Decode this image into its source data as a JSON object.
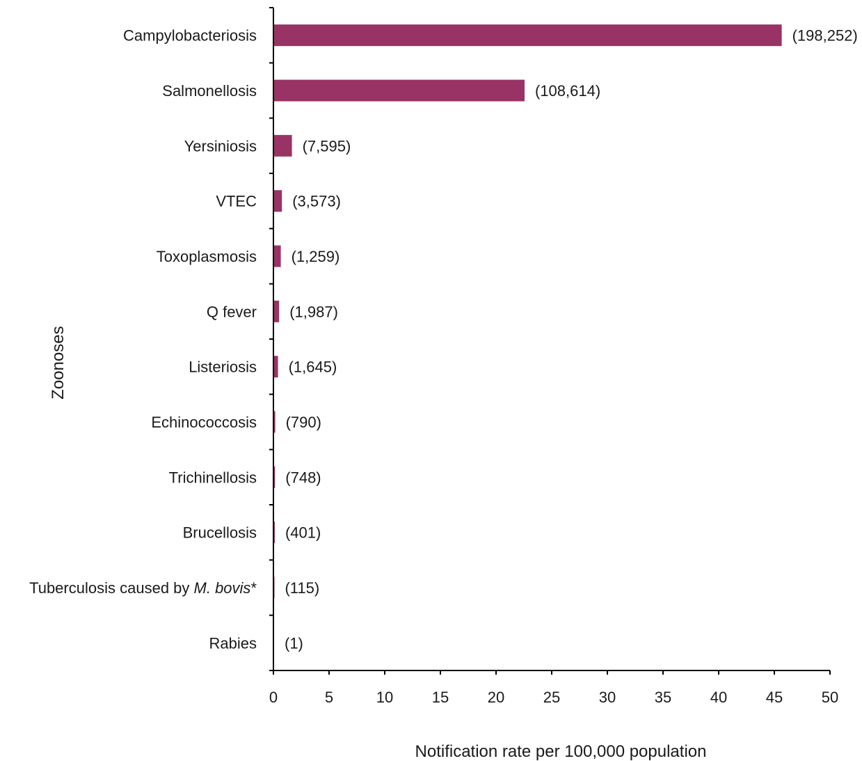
{
  "chart_data": {
    "type": "bar",
    "orientation": "horizontal",
    "title": "",
    "xlabel": "Notification rate per 100,000 population",
    "ylabel": "Zoonoses",
    "xlim": [
      0,
      50
    ],
    "x_ticks": [
      "0",
      "5",
      "10",
      "15",
      "20",
      "25",
      "30",
      "35",
      "40",
      "45",
      "50"
    ],
    "grid": false,
    "bar_color": "#993366",
    "categories": [
      {
        "label": "Campylobacteriosis",
        "italic_part": "",
        "suffix": ""
      },
      {
        "label": "Salmonellosis",
        "italic_part": "",
        "suffix": ""
      },
      {
        "label": "Yersiniosis",
        "italic_part": "",
        "suffix": ""
      },
      {
        "label": "VTEC",
        "italic_part": "",
        "suffix": ""
      },
      {
        "label": "Toxoplasmosis",
        "italic_part": "",
        "suffix": ""
      },
      {
        "label": "Q fever",
        "italic_part": "",
        "suffix": ""
      },
      {
        "label": "Listeriosis",
        "italic_part": "",
        "suffix": ""
      },
      {
        "label": "Echinococcosis",
        "italic_part": "",
        "suffix": ""
      },
      {
        "label": "Trichinellosis",
        "italic_part": "",
        "suffix": ""
      },
      {
        "label": "Brucellosis",
        "italic_part": "",
        "suffix": ""
      },
      {
        "label": "Tuberculosis caused by ",
        "italic_part": "M. bovis",
        "suffix": "*"
      },
      {
        "label": "Rabies",
        "italic_part": "",
        "suffix": ""
      }
    ],
    "values": [
      45.6,
      22.5,
      1.6,
      0.7,
      0.6,
      0.45,
      0.35,
      0.1,
      0.08,
      0.06,
      0.03,
      0.0
    ],
    "data_labels": [
      "(198,252)",
      "(108,614)",
      "(7,595)",
      "(3,573)",
      "(1,259)",
      "(1,987)",
      "(1,645)",
      "(790)",
      "(748)",
      "(401)",
      "(115)",
      "(1)"
    ]
  }
}
